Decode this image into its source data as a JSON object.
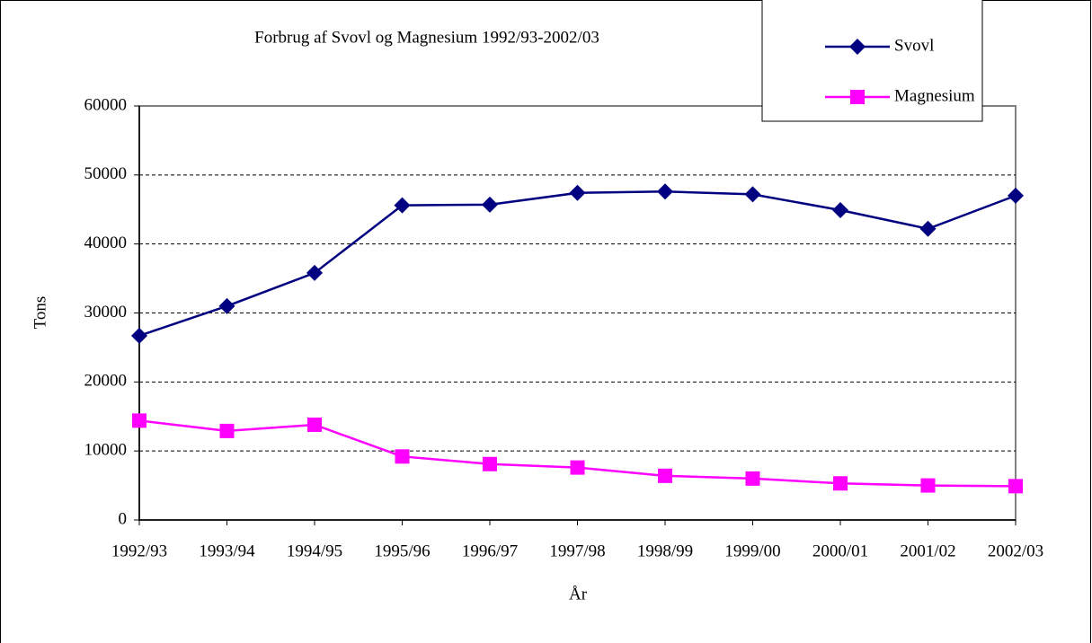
{
  "chart_data": {
    "type": "line",
    "title": "Forbrug af Svovl og Magnesium 1992/93-2002/03",
    "x_label": "År",
    "y_label": "Tons",
    "categories": [
      "1992/93",
      "1993/94",
      "1994/95",
      "1995/96",
      "1996/97",
      "1997/98",
      "1998/99",
      "1999/00",
      "2000/01",
      "2001/02",
      "2002/03"
    ],
    "series": [
      {
        "name": "Svovl",
        "color": "#000080",
        "marker": "diamond",
        "values": [
          26700,
          31000,
          35800,
          45600,
          45700,
          47400,
          47600,
          47200,
          44900,
          42200,
          47000
        ]
      },
      {
        "name": "Magnesium",
        "color": "#ff00ff",
        "marker": "square",
        "values": [
          14400,
          12900,
          13800,
          9200,
          8100,
          7600,
          6400,
          6000,
          5300,
          5000,
          4900
        ]
      }
    ],
    "ylim": [
      0,
      60000
    ],
    "yticks": [
      0,
      10000,
      20000,
      30000,
      40000,
      50000,
      60000
    ],
    "grid": true,
    "legend": "upper right"
  }
}
